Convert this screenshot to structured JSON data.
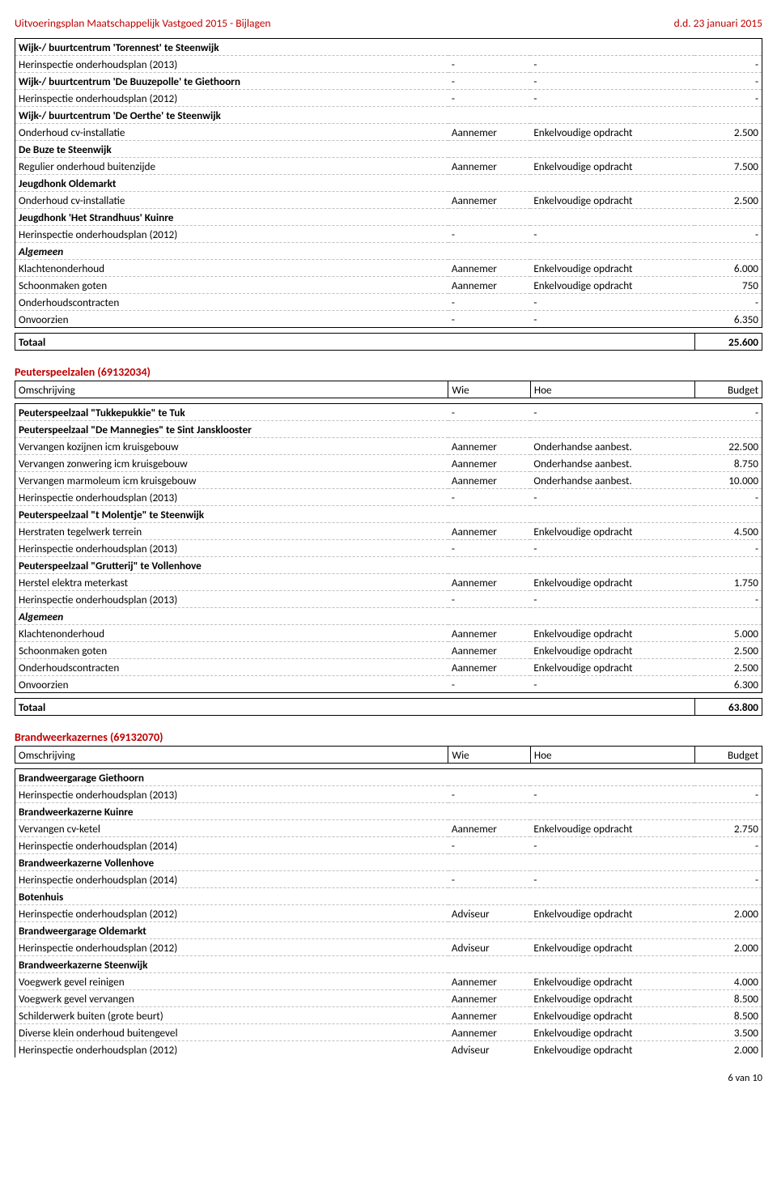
{
  "header": {
    "left": "Uitvoeringsplan Maatschappelijk Vastgoed 2015 - Bijlagen",
    "right": "d.d. 23 januari 2015"
  },
  "labels": {
    "omschrijving": "Omschrijving",
    "wie": "Wie",
    "hoe": "Hoe",
    "budget": "Budget",
    "totaal": "Totaal",
    "algemeen": "Algemeen"
  },
  "table1": {
    "groups": [
      {
        "title": "Wijk-/ buurtcentrum 'Torennest' te Steenwijk",
        "rows": [
          {
            "d": "Herinspectie onderhoudsplan (2013)",
            "w": "-",
            "h": "-",
            "b": "-"
          }
        ]
      },
      {
        "title": "Wijk-/ buurtcentrum 'De Buuzepolle' te Giethoorn",
        "titleExtra": [
          "-",
          "-",
          "-"
        ],
        "rows": [
          {
            "d": "Herinspectie onderhoudsplan (2012)",
            "w": "-",
            "h": "-",
            "b": "-"
          }
        ]
      },
      {
        "title": "Wijk-/ buurtcentrum 'De Oerthe' te Steenwijk",
        "rows": [
          {
            "d": "Onderhoud cv-installatie",
            "w": "Aannemer",
            "h": "Enkelvoudige opdracht",
            "b": "2.500"
          }
        ]
      },
      {
        "title": "De Buze te Steenwijk",
        "rows": [
          {
            "d": "Regulier onderhoud buitenzijde",
            "w": "Aannemer",
            "h": "Enkelvoudige opdracht",
            "b": "7.500"
          }
        ]
      },
      {
        "title": "Jeugdhonk Oldemarkt",
        "rows": [
          {
            "d": "Onderhoud cv-installatie",
            "w": "Aannemer",
            "h": "Enkelvoudige opdracht",
            "b": "2.500"
          }
        ]
      },
      {
        "title": "Jeugdhonk 'Het Strandhuus' Kuinre",
        "rows": [
          {
            "d": "Herinspectie onderhoudsplan (2012)",
            "w": "-",
            "h": "-",
            "b": "-"
          }
        ]
      },
      {
        "algemeen": true,
        "rows": [
          {
            "d": "Klachtenonderhoud",
            "w": "Aannemer",
            "h": "Enkelvoudige opdracht",
            "b": "6.000"
          },
          {
            "d": "Schoonmaken goten",
            "w": "Aannemer",
            "h": "Enkelvoudige opdracht",
            "b": "750"
          },
          {
            "d": "Onderhoudscontracten",
            "w": "-",
            "h": "-",
            "b": "-"
          },
          {
            "d": "Onvoorzien",
            "w": "-",
            "h": "-",
            "b": "6.350"
          }
        ]
      }
    ],
    "totaal": "25.600"
  },
  "section2": {
    "title": "Peuterspeelzalen (69132034)",
    "groups": [
      {
        "title": "Peuterspeelzaal \"Tukkepukkie\" te Tuk",
        "titleExtra": [
          "-",
          "-",
          "-"
        ],
        "rows": []
      },
      {
        "title": "Peuterspeelzaal \"De Mannegies\" te Sint Jansklooster",
        "rows": [
          {
            "d": "Vervangen kozijnen icm kruisgebouw",
            "w": "Aannemer",
            "h": "Onderhandse aanbest.",
            "b": "22.500"
          },
          {
            "d": "Vervangen zonwering icm kruisgebouw",
            "w": "Aannemer",
            "h": "Onderhandse aanbest.",
            "b": "8.750"
          },
          {
            "d": "Vervangen marmoleum icm kruisgebouw",
            "w": "Aannemer",
            "h": "Onderhandse aanbest.",
            "b": "10.000"
          },
          {
            "d": "Herinspectie onderhoudsplan (2013)",
            "w": "-",
            "h": "-",
            "b": "-"
          }
        ]
      },
      {
        "title": "Peuterspeelzaal \"t Molentje\" te Steenwijk",
        "rows": [
          {
            "d": "Herstraten tegelwerk terrein",
            "w": "Aannemer",
            "h": "Enkelvoudige opdracht",
            "b": "4.500"
          },
          {
            "d": "Herinspectie onderhoudsplan (2013)",
            "w": "-",
            "h": "-",
            "b": "-"
          }
        ]
      },
      {
        "title": "Peuterspeelzaal \"Grutterij\" te Vollenhove",
        "rows": [
          {
            "d": "Herstel elektra meterkast",
            "w": "Aannemer",
            "h": "Enkelvoudige opdracht",
            "b": "1.750"
          },
          {
            "d": "Herinspectie onderhoudsplan (2013)",
            "w": "-",
            "h": "-",
            "b": "-"
          }
        ]
      },
      {
        "algemeen": true,
        "rows": [
          {
            "d": "Klachtenonderhoud",
            "w": "Aannemer",
            "h": "Enkelvoudige opdracht",
            "b": "5.000"
          },
          {
            "d": "Schoonmaken goten",
            "w": "Aannemer",
            "h": "Enkelvoudige opdracht",
            "b": "2.500"
          },
          {
            "d": "Onderhoudscontracten",
            "w": "Aannemer",
            "h": "Enkelvoudige opdracht",
            "b": "2.500"
          },
          {
            "d": "Onvoorzien",
            "w": "-",
            "h": "-",
            "b": "6.300"
          }
        ]
      }
    ],
    "totaal": "63.800"
  },
  "section3": {
    "title": "Brandweerkazernes (69132070)",
    "groups": [
      {
        "title": "Brandweergarage Giethoorn",
        "rows": [
          {
            "d": "Herinspectie onderhoudsplan (2013)",
            "w": "-",
            "h": "-",
            "b": "-"
          }
        ]
      },
      {
        "title": "Brandweerkazerne Kuinre",
        "rows": [
          {
            "d": "Vervangen cv-ketel",
            "w": "Aannemer",
            "h": "Enkelvoudige opdracht",
            "b": "2.750"
          },
          {
            "d": "Herinspectie onderhoudsplan (2014)",
            "w": "-",
            "h": "-",
            "b": "-"
          }
        ]
      },
      {
        "title": "Brandweerkazerne Vollenhove",
        "rows": [
          {
            "d": "Herinspectie onderhoudsplan (2014)",
            "w": "-",
            "h": "-",
            "b": "-"
          }
        ]
      },
      {
        "title": "Botenhuis",
        "rows": [
          {
            "d": "Herinspectie onderhoudsplan (2012)",
            "w": "Adviseur",
            "h": "Enkelvoudige opdracht",
            "b": "2.000"
          }
        ]
      },
      {
        "title": "Brandweergarage Oldemarkt",
        "rows": [
          {
            "d": "Herinspectie onderhoudsplan (2012)",
            "w": "Adviseur",
            "h": "Enkelvoudige opdracht",
            "b": "2.000"
          }
        ]
      },
      {
        "title": "Brandweerkazerne Steenwijk",
        "rows": [
          {
            "d": "Voegwerk gevel reinigen",
            "w": "Aannemer",
            "h": "Enkelvoudige opdracht",
            "b": "4.000"
          },
          {
            "d": "Voegwerk gevel vervangen",
            "w": "Aannemer",
            "h": "Enkelvoudige opdracht",
            "b": "8.500"
          },
          {
            "d": "Schilderwerk buiten (grote beurt)",
            "w": "Aannemer",
            "h": "Enkelvoudige opdracht",
            "b": "8.500"
          },
          {
            "d": "Diverse klein onderhoud buitengevel",
            "w": "Aannemer",
            "h": "Enkelvoudige opdracht",
            "b": "3.500"
          },
          {
            "d": "Herinspectie onderhoudsplan (2012)",
            "w": "Adviseur",
            "h": "Enkelvoudige opdracht",
            "b": "2.000"
          }
        ]
      }
    ]
  },
  "footer": "6 van 10"
}
